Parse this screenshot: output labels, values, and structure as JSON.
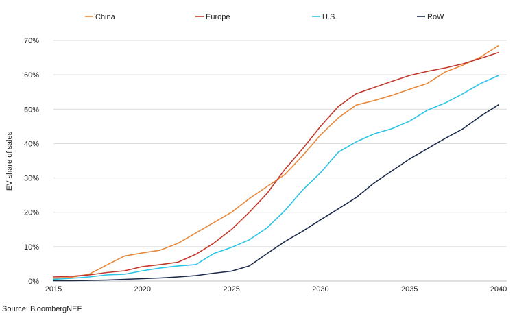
{
  "chart_data": {
    "type": "line",
    "title": "",
    "xlabel": "",
    "ylabel": "EV share of sales",
    "source": "Source: BloombergNEF",
    "xlim": [
      2015,
      2040
    ],
    "ylim": [
      0,
      70
    ],
    "x_ticks": [
      2015,
      2020,
      2025,
      2030,
      2035,
      2040
    ],
    "y_ticks": [
      0,
      10,
      20,
      30,
      40,
      50,
      60,
      70
    ],
    "y_tick_suffix": "%",
    "grid": "horizontal",
    "legend_position": "top",
    "x": [
      2015,
      2016,
      2017,
      2018,
      2019,
      2020,
      2021,
      2022,
      2023,
      2024,
      2025,
      2026,
      2027,
      2028,
      2029,
      2030,
      2031,
      2032,
      2033,
      2034,
      2035,
      2036,
      2037,
      2038,
      2039,
      2040
    ],
    "series": [
      {
        "name": "China",
        "color": "#e8883a",
        "values": [
          0.8,
          1.1,
          2.0,
          4.7,
          7.3,
          8.2,
          9.0,
          11.0,
          14.0,
          17.0,
          20.0,
          24.0,
          27.5,
          31.0,
          36.5,
          42.5,
          47.5,
          51.2,
          52.5,
          54.0,
          55.8,
          57.5,
          60.8,
          62.8,
          65.2,
          68.5
        ]
      },
      {
        "name": "Europe",
        "color": "#c0392b",
        "values": [
          1.2,
          1.4,
          1.8,
          2.5,
          3.0,
          4.2,
          4.8,
          5.5,
          7.8,
          11.0,
          15.0,
          20.0,
          25.5,
          32.5,
          38.5,
          45.0,
          50.8,
          54.5,
          56.3,
          58.1,
          59.8,
          61.0,
          62.0,
          63.2,
          64.8,
          66.5
        ]
      },
      {
        "name": "U.S.",
        "color": "#29c4e6",
        "values": [
          0.5,
          0.8,
          1.2,
          1.8,
          2.0,
          3.0,
          3.8,
          4.4,
          4.8,
          8.0,
          9.8,
          12.0,
          15.5,
          20.5,
          26.5,
          31.5,
          37.5,
          40.5,
          42.8,
          44.3,
          46.5,
          49.7,
          51.8,
          54.5,
          57.5,
          59.8
        ]
      },
      {
        "name": "RoW",
        "color": "#1b2a4a",
        "values": [
          0.1,
          0.1,
          0.2,
          0.3,
          0.5,
          0.7,
          0.9,
          1.2,
          1.6,
          2.3,
          2.9,
          4.4,
          8.0,
          11.5,
          14.5,
          17.8,
          21.0,
          24.3,
          28.5,
          32.0,
          35.5,
          38.5,
          41.5,
          44.3,
          48.0,
          51.3
        ]
      }
    ]
  }
}
